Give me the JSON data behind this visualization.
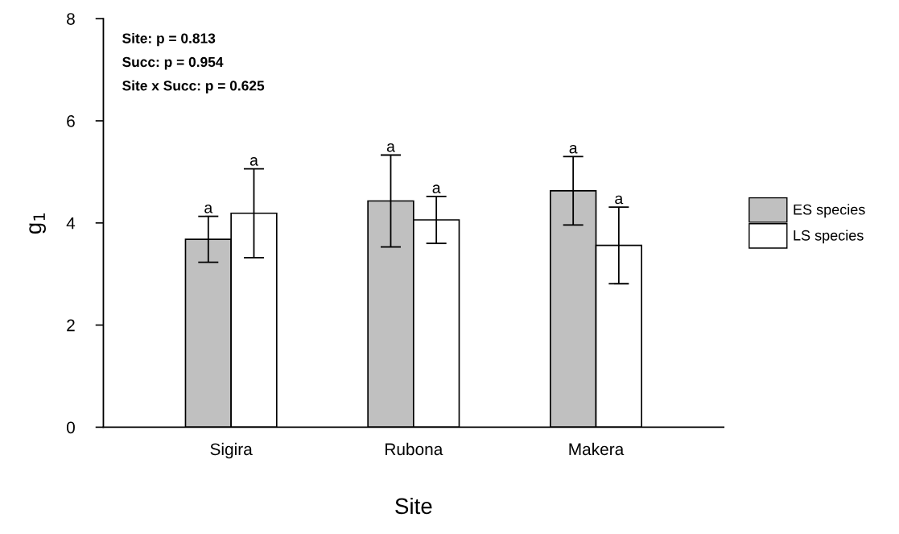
{
  "chart_data": {
    "type": "bar",
    "xlabel": "Site",
    "ylabel": "g$_{1}$",
    "categories": [
      "Sigira",
      "Rubona",
      "Makera"
    ],
    "series": [
      {
        "name": "ES species",
        "color": "#c0c0c0",
        "values": [
          3.68,
          4.43,
          4.63
        ],
        "errors": [
          0.45,
          0.9,
          0.67
        ],
        "value_labels": [
          "a",
          "a",
          "a"
        ]
      },
      {
        "name": "LS species",
        "color": "#ffffff",
        "values": [
          4.19,
          4.06,
          3.56
        ],
        "errors": [
          0.87,
          0.46,
          0.75
        ],
        "value_labels": [
          "a",
          "a",
          "a"
        ]
      }
    ],
    "ylim": [
      0,
      8
    ],
    "yticks": [
      0,
      2,
      4,
      6,
      8
    ],
    "grid": false,
    "legend": "right",
    "annotations": [
      "Site: p = 0.813",
      "Succ: p = 0.954",
      "Site x Succ: p = 0.625"
    ]
  }
}
